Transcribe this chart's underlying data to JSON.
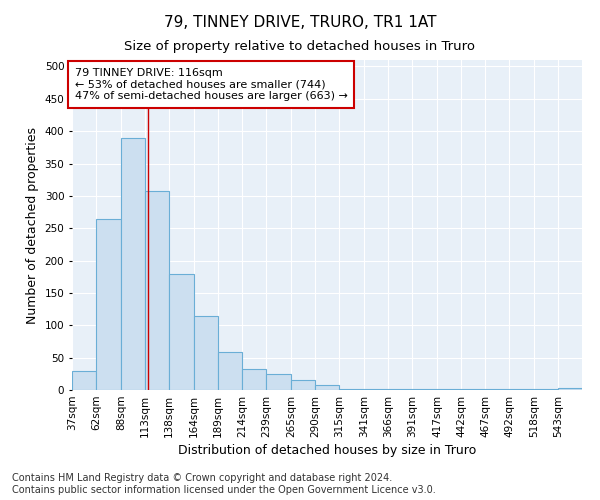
{
  "title": "79, TINNEY DRIVE, TRURO, TR1 1AT",
  "subtitle": "Size of property relative to detached houses in Truro",
  "xlabel": "Distribution of detached houses by size in Truro",
  "ylabel": "Number of detached properties",
  "bar_color": "#ccdff0",
  "bar_edge_color": "#6aaed6",
  "background_color": "#e8f0f8",
  "grid_color": "#ffffff",
  "bin_labels": [
    "37sqm",
    "62sqm",
    "88sqm",
    "113sqm",
    "138sqm",
    "164sqm",
    "189sqm",
    "214sqm",
    "239sqm",
    "265sqm",
    "290sqm",
    "315sqm",
    "341sqm",
    "366sqm",
    "391sqm",
    "417sqm",
    "442sqm",
    "467sqm",
    "492sqm",
    "518sqm",
    "543sqm"
  ],
  "bin_edges": [
    37,
    62,
    88,
    113,
    138,
    164,
    189,
    214,
    239,
    265,
    290,
    315,
    341,
    366,
    391,
    417,
    442,
    467,
    492,
    518,
    543,
    568
  ],
  "bar_heights": [
    30,
    265,
    390,
    308,
    180,
    115,
    58,
    32,
    25,
    15,
    7,
    2,
    1,
    1,
    1,
    1,
    1,
    1,
    1,
    1,
    3
  ],
  "red_line_x": 116,
  "annotation_text": "79 TINNEY DRIVE: 116sqm\n← 53% of detached houses are smaller (744)\n47% of semi-detached houses are larger (663) →",
  "annotation_box_color": "#ffffff",
  "annotation_box_edge_color": "#cc0000",
  "ylim": [
    0,
    510
  ],
  "yticks": [
    0,
    50,
    100,
    150,
    200,
    250,
    300,
    350,
    400,
    450,
    500
  ],
  "footnote": "Contains HM Land Registry data © Crown copyright and database right 2024.\nContains public sector information licensed under the Open Government Licence v3.0.",
  "title_fontsize": 11,
  "subtitle_fontsize": 9.5,
  "axis_label_fontsize": 9,
  "tick_fontsize": 7.5,
  "annotation_fontsize": 8,
  "footnote_fontsize": 7
}
